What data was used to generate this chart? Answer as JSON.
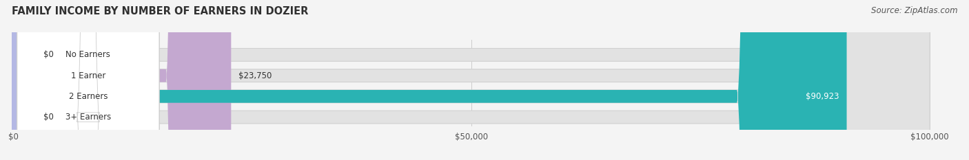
{
  "title": "FAMILY INCOME BY NUMBER OF EARNERS IN DOZIER",
  "source": "Source: ZipAtlas.com",
  "categories": [
    "No Earners",
    "1 Earner",
    "2 Earners",
    "3+ Earners"
  ],
  "values": [
    0,
    23750,
    90923,
    0
  ],
  "max_value": 100000,
  "bar_colors": [
    "#aac4de",
    "#c4a8d0",
    "#2ab3b3",
    "#b4b8e4"
  ],
  "value_labels": [
    "$0",
    "$23,750",
    "$90,923",
    "$0"
  ],
  "x_ticks": [
    0,
    50000,
    100000
  ],
  "x_tick_labels": [
    "$0",
    "$50,000",
    "$100,000"
  ],
  "background_color": "#f4f4f4",
  "bar_bg_color": "#e2e2e2",
  "label_bg_color": "#ffffff",
  "title_fontsize": 10.5,
  "source_fontsize": 8.5,
  "fig_width": 14.06,
  "fig_height": 2.33
}
